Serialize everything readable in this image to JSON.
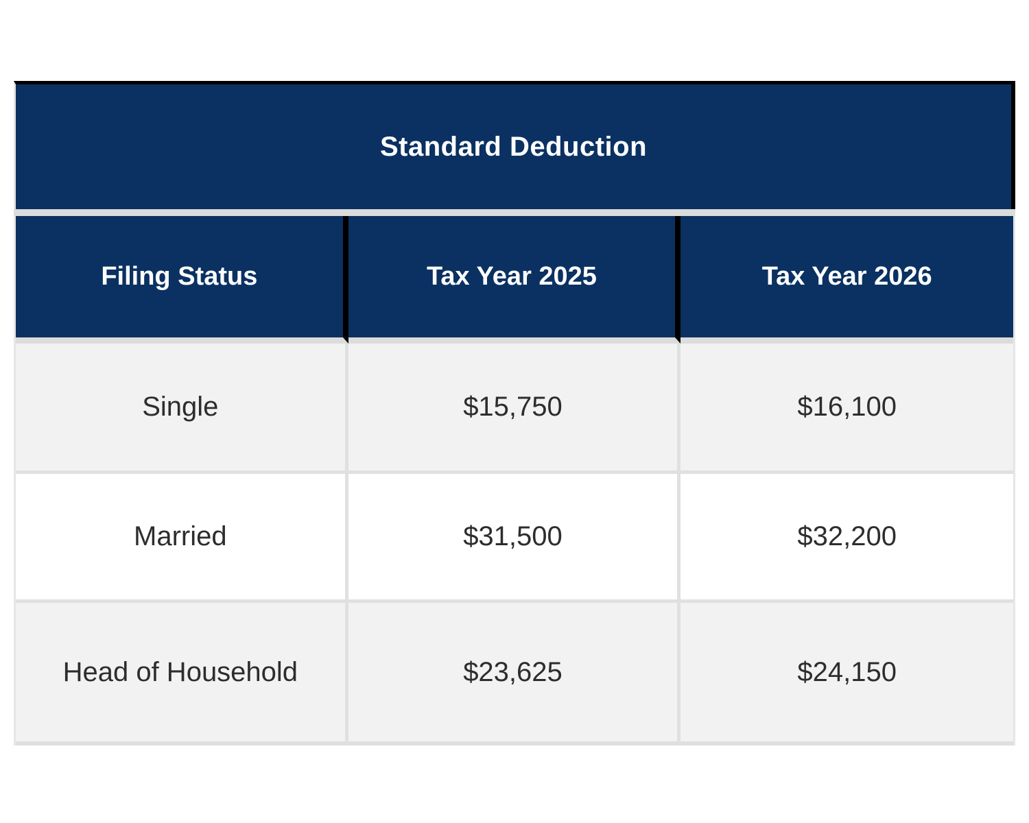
{
  "chart_data": {
    "type": "table",
    "title": "Standard Deduction",
    "columns": [
      "Filing Status",
      "Tax Year 2025",
      "Tax Year 2026"
    ],
    "rows": [
      [
        "Single",
        "$15,750",
        "$16,100"
      ],
      [
        "Married",
        "$31,500",
        "$32,200"
      ],
      [
        "Head of Household",
        "$23,625",
        "$24,150"
      ]
    ],
    "layout": {
      "legend": "none",
      "grid": "light-gray separators between cells",
      "header_divider_color": "black",
      "row_striping": "alternating gray/white starting gray"
    },
    "colors": {
      "header_bg": "#0a3161",
      "header_text": "#ffffff",
      "accent_border": "#000000",
      "row_alt_bg": "#f2f2f2",
      "row_bg": "#ffffff",
      "body_text": "#2d2d2d",
      "grid_line": "#e0e0e0",
      "gap_band": "#dcdcdc"
    }
  }
}
